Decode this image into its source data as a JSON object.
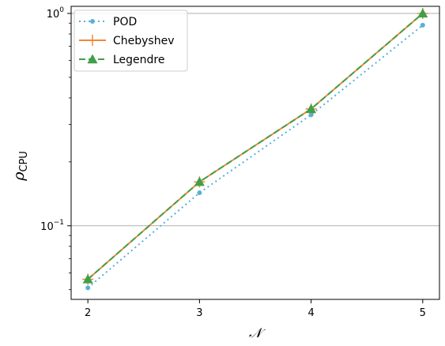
{
  "chart_data": {
    "type": "line",
    "title": "",
    "xlabel": "𝒩",
    "ylabel": "ρ",
    "ylabel_subscript": "CPU",
    "x": [
      2,
      3,
      4,
      5
    ],
    "xlim": [
      1.85,
      5.15
    ],
    "ylim": [
      0.045,
      1.08
    ],
    "yscale": "log",
    "x_ticks": [
      2,
      3,
      4,
      5
    ],
    "x_tick_labels": [
      "2",
      "3",
      "4",
      "5"
    ],
    "y_major_ticks": [
      0.1,
      1
    ],
    "y_major_tick_labels": [
      {
        "base": "10",
        "exp": "−1"
      },
      {
        "base": "10",
        "exp": "0"
      }
    ],
    "y_minor_ticks": [
      0.05,
      0.06,
      0.07,
      0.08,
      0.09,
      0.2,
      0.3,
      0.4,
      0.5,
      0.6,
      0.7,
      0.8,
      0.9
    ],
    "grid": "horizontal major",
    "legend_position": "top-left",
    "series": [
      {
        "name": "POD",
        "values": [
          0.051,
          0.143,
          0.333,
          0.88
        ],
        "color": "#5aafd6",
        "dash": "2,4",
        "marker": "circle"
      },
      {
        "name": "Chebyshev",
        "values": [
          0.056,
          0.161,
          0.355,
          1.0
        ],
        "color": "#f0883a",
        "dash": "",
        "marker": "plus"
      },
      {
        "name": "Legendre",
        "values": [
          0.056,
          0.161,
          0.355,
          1.0
        ],
        "color": "#3fa048",
        "dash": "8,4",
        "marker": "triangle"
      }
    ]
  }
}
